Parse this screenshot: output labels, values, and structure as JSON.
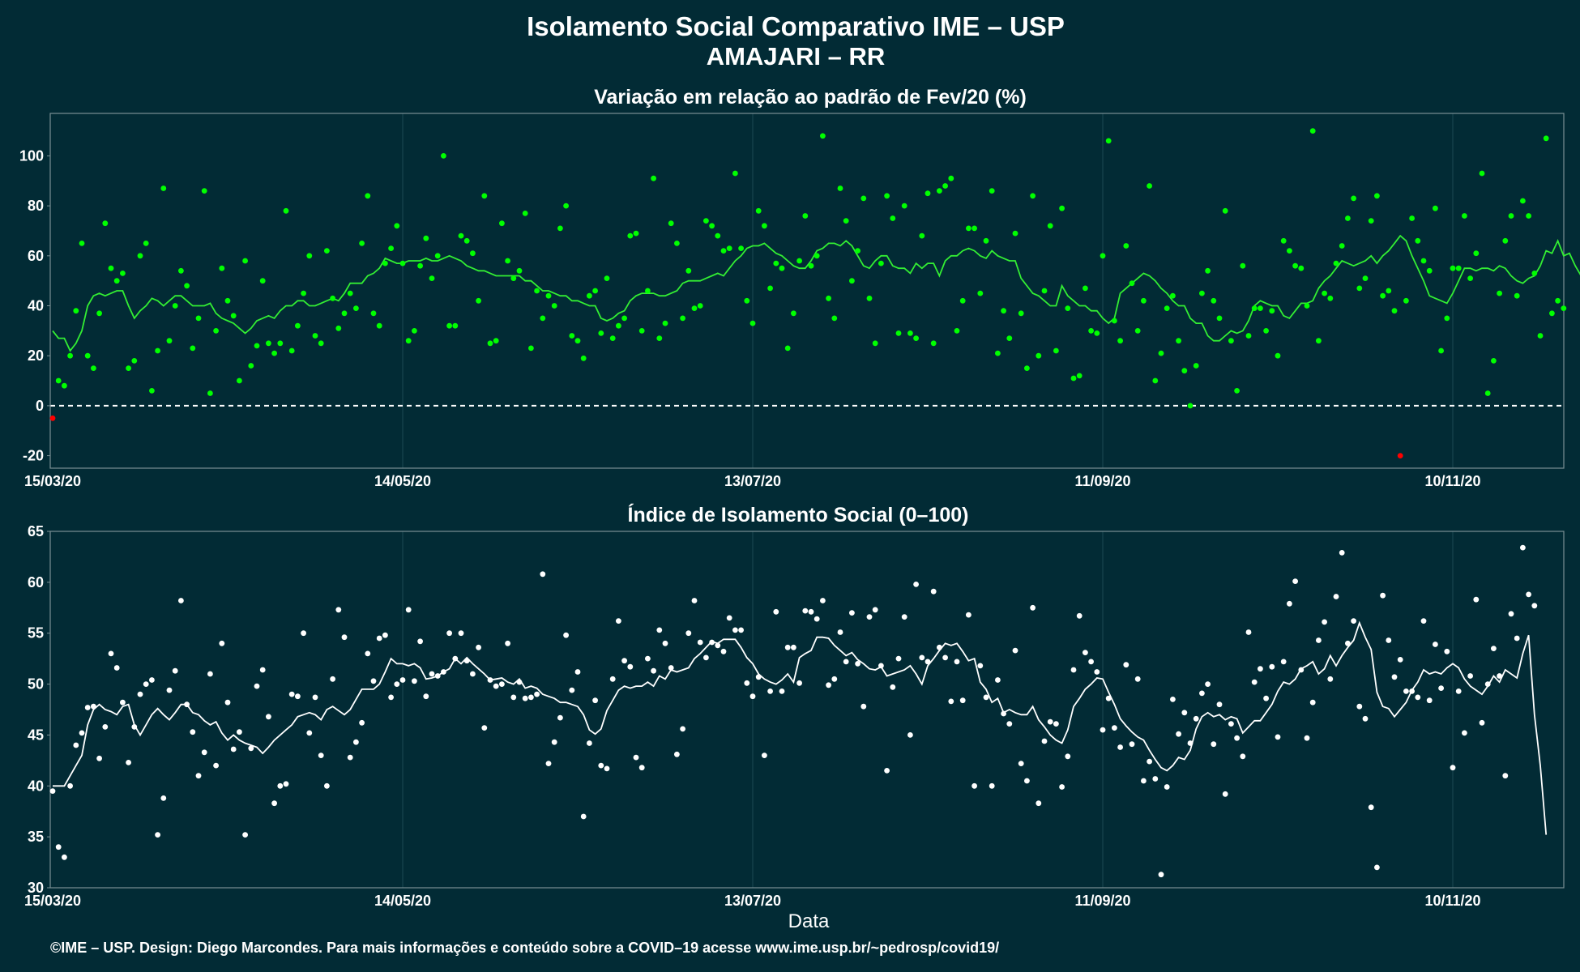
{
  "page": {
    "title": "Isolamento Social Comparativo IME – USP",
    "subtitle": "AMAJARI – RR",
    "footer": "©IME – USP. Design: Diego Marcondes. Para mais informações e conteúdo sobre a COVID–19 acesse www.ime.usp.br/~pedrosp/covid19/"
  },
  "colors": {
    "background": "#022b35",
    "gridline": "#1c4a52",
    "panel_border": "#7a8f94",
    "variation_points": "#00ff00",
    "variation_negative_points": "#ff0000",
    "variation_line": "#33ee33",
    "index_points": "#ffffff",
    "index_line": "#ffffff"
  },
  "chart_data": [
    {
      "type": "scatter",
      "title": "Variação em relação ao padrão de Fev/20 (%)",
      "xlabel": "",
      "ylabel": "",
      "start_date": "15/03/20",
      "x_ticks": [
        {
          "day": 0,
          "label": "15/03/20"
        },
        {
          "day": 60,
          "label": "14/05/20"
        },
        {
          "day": 120,
          "label": "13/07/20"
        },
        {
          "day": 180,
          "label": "11/09/20"
        },
        {
          "day": 240,
          "label": "10/11/20"
        }
      ],
      "xlim": [
        0,
        260
      ],
      "ylim": [
        -25,
        117
      ],
      "y_ticks": [
        -20,
        0,
        20,
        40,
        60,
        80,
        100
      ],
      "reference_line": 0,
      "grid": true,
      "points": [
        -5,
        10,
        8,
        20,
        38,
        65,
        20,
        15,
        37,
        73,
        55,
        50,
        53,
        15,
        18,
        60,
        65,
        6,
        22,
        87,
        26,
        40,
        54,
        48,
        23,
        35,
        86,
        5,
        30,
        55,
        42,
        36,
        10,
        58,
        16,
        24,
        50,
        25,
        21,
        25,
        78,
        22,
        32,
        45,
        60,
        28,
        25,
        62,
        43,
        31,
        37,
        45,
        39,
        65,
        84,
        37,
        32,
        57,
        63,
        72,
        57,
        26,
        30,
        56,
        67,
        51,
        60,
        100,
        32,
        32,
        68,
        66,
        61,
        42,
        84,
        25,
        26,
        73,
        58,
        51,
        54,
        77,
        23,
        46,
        35,
        44,
        40,
        71,
        80,
        28,
        26,
        19,
        44,
        46,
        29,
        51,
        27,
        32,
        35,
        68,
        69,
        30,
        46,
        91,
        27,
        33,
        73,
        65,
        35,
        54,
        39,
        40,
        74,
        72,
        68,
        62,
        63,
        93,
        63,
        42,
        33,
        78,
        72,
        47,
        57,
        55,
        23,
        37,
        58,
        76,
        56,
        60,
        108,
        43,
        35,
        87,
        74,
        50,
        62,
        83,
        43,
        25,
        57,
        84,
        75,
        29,
        80,
        29,
        27,
        68,
        85,
        25,
        86,
        88,
        91,
        30,
        42,
        71,
        71,
        45,
        66,
        86,
        21,
        38,
        27,
        69,
        37,
        15,
        84,
        20,
        46,
        72,
        22,
        79,
        39,
        11,
        12,
        47,
        30,
        29,
        60,
        106,
        34,
        26,
        64,
        49,
        30,
        42,
        88,
        10,
        21,
        39,
        44,
        26,
        14,
        0,
        16,
        45,
        54,
        42,
        35,
        78,
        26,
        6,
        56,
        28,
        39,
        39,
        30,
        38,
        20,
        66,
        62,
        56,
        55,
        40,
        110,
        26,
        45,
        43,
        57,
        64,
        75,
        83,
        47,
        51,
        74,
        84,
        44,
        46,
        38,
        -20,
        42,
        75,
        66,
        58,
        54,
        79,
        22,
        35,
        55,
        55,
        76,
        51,
        61,
        93,
        5,
        18,
        45,
        66,
        76,
        44,
        82,
        76,
        53,
        28,
        107,
        37,
        42,
        39
      ],
      "moving_average": [
        30,
        27,
        27,
        22,
        25,
        30,
        40,
        44,
        45,
        44,
        45,
        46,
        46,
        40,
        35,
        38,
        40,
        43,
        42,
        40,
        42,
        44,
        44,
        42,
        40,
        40,
        40,
        41,
        37,
        35,
        34,
        33,
        31,
        29,
        31,
        34,
        35,
        36,
        35,
        38,
        40,
        40,
        42,
        42,
        40,
        40,
        41,
        42,
        43,
        42,
        45,
        49,
        49,
        49,
        52,
        53,
        55,
        59,
        58,
        57,
        57,
        58,
        58,
        58,
        59,
        58,
        58,
        59,
        60,
        59,
        58,
        56,
        55,
        54,
        54,
        53,
        52,
        52,
        52,
        52,
        52,
        50,
        50,
        48,
        46,
        46,
        45,
        44,
        44,
        42,
        42,
        41,
        40,
        40,
        35,
        34,
        35,
        37,
        38,
        42,
        44,
        45,
        45,
        45,
        44,
        44,
        45,
        46,
        49,
        50,
        50,
        50,
        51,
        52,
        53,
        52,
        55,
        58,
        60,
        63,
        64,
        64,
        65,
        63,
        61,
        60,
        58,
        56,
        55,
        55,
        58,
        62,
        63,
        65,
        65,
        64,
        66,
        64,
        60,
        56,
        55,
        58,
        60,
        60,
        56,
        55,
        55,
        53,
        57,
        55,
        57,
        57,
        52,
        58,
        60,
        60,
        62,
        63,
        62,
        60,
        59,
        62,
        60,
        59,
        58,
        58,
        51,
        48,
        45,
        44,
        42,
        40,
        40,
        48,
        44,
        42,
        40,
        40,
        38,
        38,
        35,
        33,
        35,
        45,
        47,
        49,
        51,
        53,
        52,
        50,
        47,
        45,
        42,
        40,
        40,
        35,
        33,
        33,
        28,
        26,
        26,
        28,
        30,
        29,
        30,
        34,
        40,
        42,
        41,
        40,
        40,
        36,
        35,
        38,
        41,
        41,
        42,
        47,
        50,
        52,
        55,
        58,
        57,
        56,
        57,
        58,
        60,
        57,
        60,
        62,
        65,
        68,
        66,
        60,
        55,
        50,
        44,
        43,
        42,
        41,
        45,
        50,
        55,
        55,
        54,
        55,
        55,
        54,
        56,
        55,
        52,
        50,
        49,
        51,
        52,
        56,
        62,
        61,
        66,
        60,
        61,
        56,
        52
      ]
    },
    {
      "type": "scatter",
      "title": "Índice de Isolamento Social (0–100)",
      "xlabel": "Data",
      "ylabel": "",
      "start_date": "15/03/20",
      "x_ticks": [
        {
          "day": 0,
          "label": "15/03/20"
        },
        {
          "day": 60,
          "label": "14/05/20"
        },
        {
          "day": 120,
          "label": "13/07/20"
        },
        {
          "day": 180,
          "label": "11/09/20"
        },
        {
          "day": 240,
          "label": "10/11/20"
        }
      ],
      "xlim": [
        0,
        260
      ],
      "ylim": [
        30,
        65
      ],
      "y_ticks": [
        30,
        35,
        40,
        45,
        50,
        55,
        60,
        65
      ],
      "grid": true,
      "points": [
        39.5,
        34,
        33,
        40,
        44,
        45.2,
        47.7,
        47.8,
        42.7,
        45.8,
        53,
        51.6,
        48.2,
        42.3,
        45.8,
        49,
        50,
        50.4,
        35.2,
        38.8,
        49.4,
        51.3,
        58.2,
        48,
        45.3,
        41,
        43.3,
        51,
        42,
        54,
        48.2,
        43.6,
        45.3,
        35.2,
        43.7,
        49.8,
        51.4,
        46.8,
        38.3,
        40,
        40.2,
        49,
        48.8,
        55,
        45.2,
        48.7,
        43,
        40,
        50.5,
        57.3,
        54.6,
        42.8,
        44.3,
        46.2,
        53,
        50.3,
        54.5,
        54.8,
        48.7,
        50,
        50.4,
        57.3,
        50.3,
        54.2,
        48.8,
        51,
        50.8,
        51.2,
        55,
        52.5,
        55,
        52.3,
        51,
        53.6,
        45.7,
        50.4,
        49.8,
        50,
        54,
        48.7,
        50.2,
        48.6,
        48.7,
        49,
        60.8,
        42.2,
        44.3,
        46.7,
        54.8,
        49.4,
        51.2,
        37,
        44.2,
        48.4,
        42,
        41.7,
        50.5,
        56.2,
        52.3,
        51.7,
        42.8,
        41.8,
        52.5,
        51.3,
        55.3,
        54,
        51.6,
        43.1,
        45.6,
        55,
        58.2,
        54.1,
        52.6,
        54.1,
        53.8,
        53.2,
        56.5,
        55.3,
        55.3,
        50.1,
        48.8,
        50.7,
        43,
        49.3,
        57.1,
        49.3,
        53.6,
        53.6,
        50.1,
        57.2,
        57.1,
        56.4,
        58.2,
        49.9,
        50.5,
        55.1,
        52.2,
        57,
        52,
        47.8,
        56.6,
        57.3,
        51.8,
        41.5,
        49.7,
        52.5,
        56.6,
        45,
        59.8,
        52.6,
        52.2,
        59.1,
        53.6,
        52.6,
        48.3,
        52.2,
        48.4,
        56.8,
        40,
        51.8,
        48.7,
        40,
        50.4,
        47.1,
        46.1,
        53.3,
        42.2,
        40.5,
        57.5,
        38.3,
        44.4,
        46.3,
        46.1,
        39.9,
        42.9,
        51.4,
        56.7,
        53.1,
        52.2,
        51.2,
        45.5,
        48.6,
        45.7,
        43.8,
        51.9,
        44.1,
        50.5,
        40.5,
        42.4,
        40.7,
        31.3,
        39.9,
        48.5,
        45.1,
        47.2,
        44.2,
        46.6,
        49.1,
        50,
        44.1,
        48,
        39.2,
        46.1,
        44.7,
        42.9,
        55.1,
        50.2,
        51.5,
        48.6,
        51.7,
        44.8,
        52.2,
        57.9,
        60.1,
        51.4,
        44.7,
        48.2,
        54.3,
        56.1,
        50.5,
        58.6,
        62.9,
        54,
        56.2,
        47.8,
        46.6,
        37.9,
        32,
        58.7,
        54.3,
        50.7,
        52.4,
        49.3,
        49.3,
        48.7,
        56.2,
        48.4,
        53.9,
        49.6,
        53.2,
        41.8,
        49.3,
        45.2,
        50.8,
        58.3,
        46.2,
        50,
        53.5,
        50.8,
        41,
        56.9,
        54.5,
        63.4,
        58.8,
        57.7
      ],
      "moving_average": [
        40,
        40,
        40,
        41,
        42,
        43,
        46,
        47.5,
        48,
        47.5,
        47.3,
        47,
        47.8,
        48,
        46,
        45,
        46,
        47,
        47.6,
        47,
        46.5,
        47.2,
        48,
        48,
        47.2,
        47,
        46.4,
        46,
        46.3,
        45.2,
        44.5,
        45,
        44.5,
        44.2,
        44,
        43.8,
        43.2,
        43.8,
        44.5,
        45,
        45.5,
        46,
        46.8,
        47,
        47.2,
        47,
        46.5,
        47.5,
        47.8,
        47.4,
        47,
        47.5,
        48.5,
        49.5,
        49.5,
        49.5,
        50,
        51.2,
        52.5,
        52,
        52,
        51.8,
        52,
        51.6,
        50.5,
        50.6,
        50.8,
        51.2,
        51.5,
        52.5,
        52,
        52.6,
        52,
        51.5,
        51,
        50.4,
        50.5,
        50.6,
        50.2,
        50,
        50.5,
        49.6,
        49.8,
        49.6,
        49,
        48.8,
        48.6,
        48.2,
        48.2,
        48,
        47.8,
        47,
        45.5,
        45.1,
        45.6,
        47.4,
        48.4,
        49.4,
        49.8,
        49.6,
        49.8,
        49.8,
        50.2,
        49.8,
        50.8,
        50.5,
        51.4,
        51.2,
        51.4,
        51.6,
        52.5,
        53,
        53.6,
        54.2,
        54,
        54.4,
        54.4,
        54.4,
        53.6,
        52.6,
        52,
        51,
        50.5,
        50.2,
        50,
        50.4,
        51,
        50.2,
        52.6,
        53,
        53.3,
        54.6,
        54.6,
        54.5,
        53.8,
        53.3,
        52.8,
        53.1,
        52.4,
        52,
        51.5,
        51.4,
        51.7,
        50.8,
        51,
        51.2,
        51.4,
        51.8,
        51,
        50,
        51.8,
        52.5,
        53.3,
        54,
        53.8,
        54,
        53.2,
        52.3,
        52.5,
        50.2,
        49.5,
        48.2,
        48.6,
        47.2,
        47.5,
        47.2,
        47,
        47,
        47.8,
        46.5,
        45.8,
        45,
        44.5,
        44.2,
        45.5,
        47.8,
        48.6,
        49.5,
        50,
        50.6,
        50.5,
        49.2,
        48,
        46.6,
        45.9,
        45.3,
        44.8,
        44.5,
        43.5,
        42.6,
        41.8,
        41.5,
        42,
        42.8,
        42.6,
        43.5,
        45.6,
        46.8,
        47.2,
        46.8,
        47,
        46.5,
        46.8,
        46.6,
        45.2,
        45.8,
        46.4,
        46.4,
        47.2,
        48,
        49.3,
        50.2,
        50,
        50.5,
        51.5,
        51.8,
        52.2,
        51,
        51.5,
        52.8,
        51.8,
        52.8,
        53.6,
        54.3,
        56,
        54.6,
        53.4,
        49.2,
        47.8,
        47.6,
        46.8,
        47.5,
        48.2,
        49.4,
        50.2,
        51.4,
        51,
        51.2,
        51,
        51.6,
        52,
        51.6,
        50.5,
        49.8,
        49.4,
        49,
        49.8,
        50.8,
        50.2,
        51.4,
        51,
        50.6,
        53,
        54.8,
        47,
        42,
        35.2
      ]
    }
  ]
}
